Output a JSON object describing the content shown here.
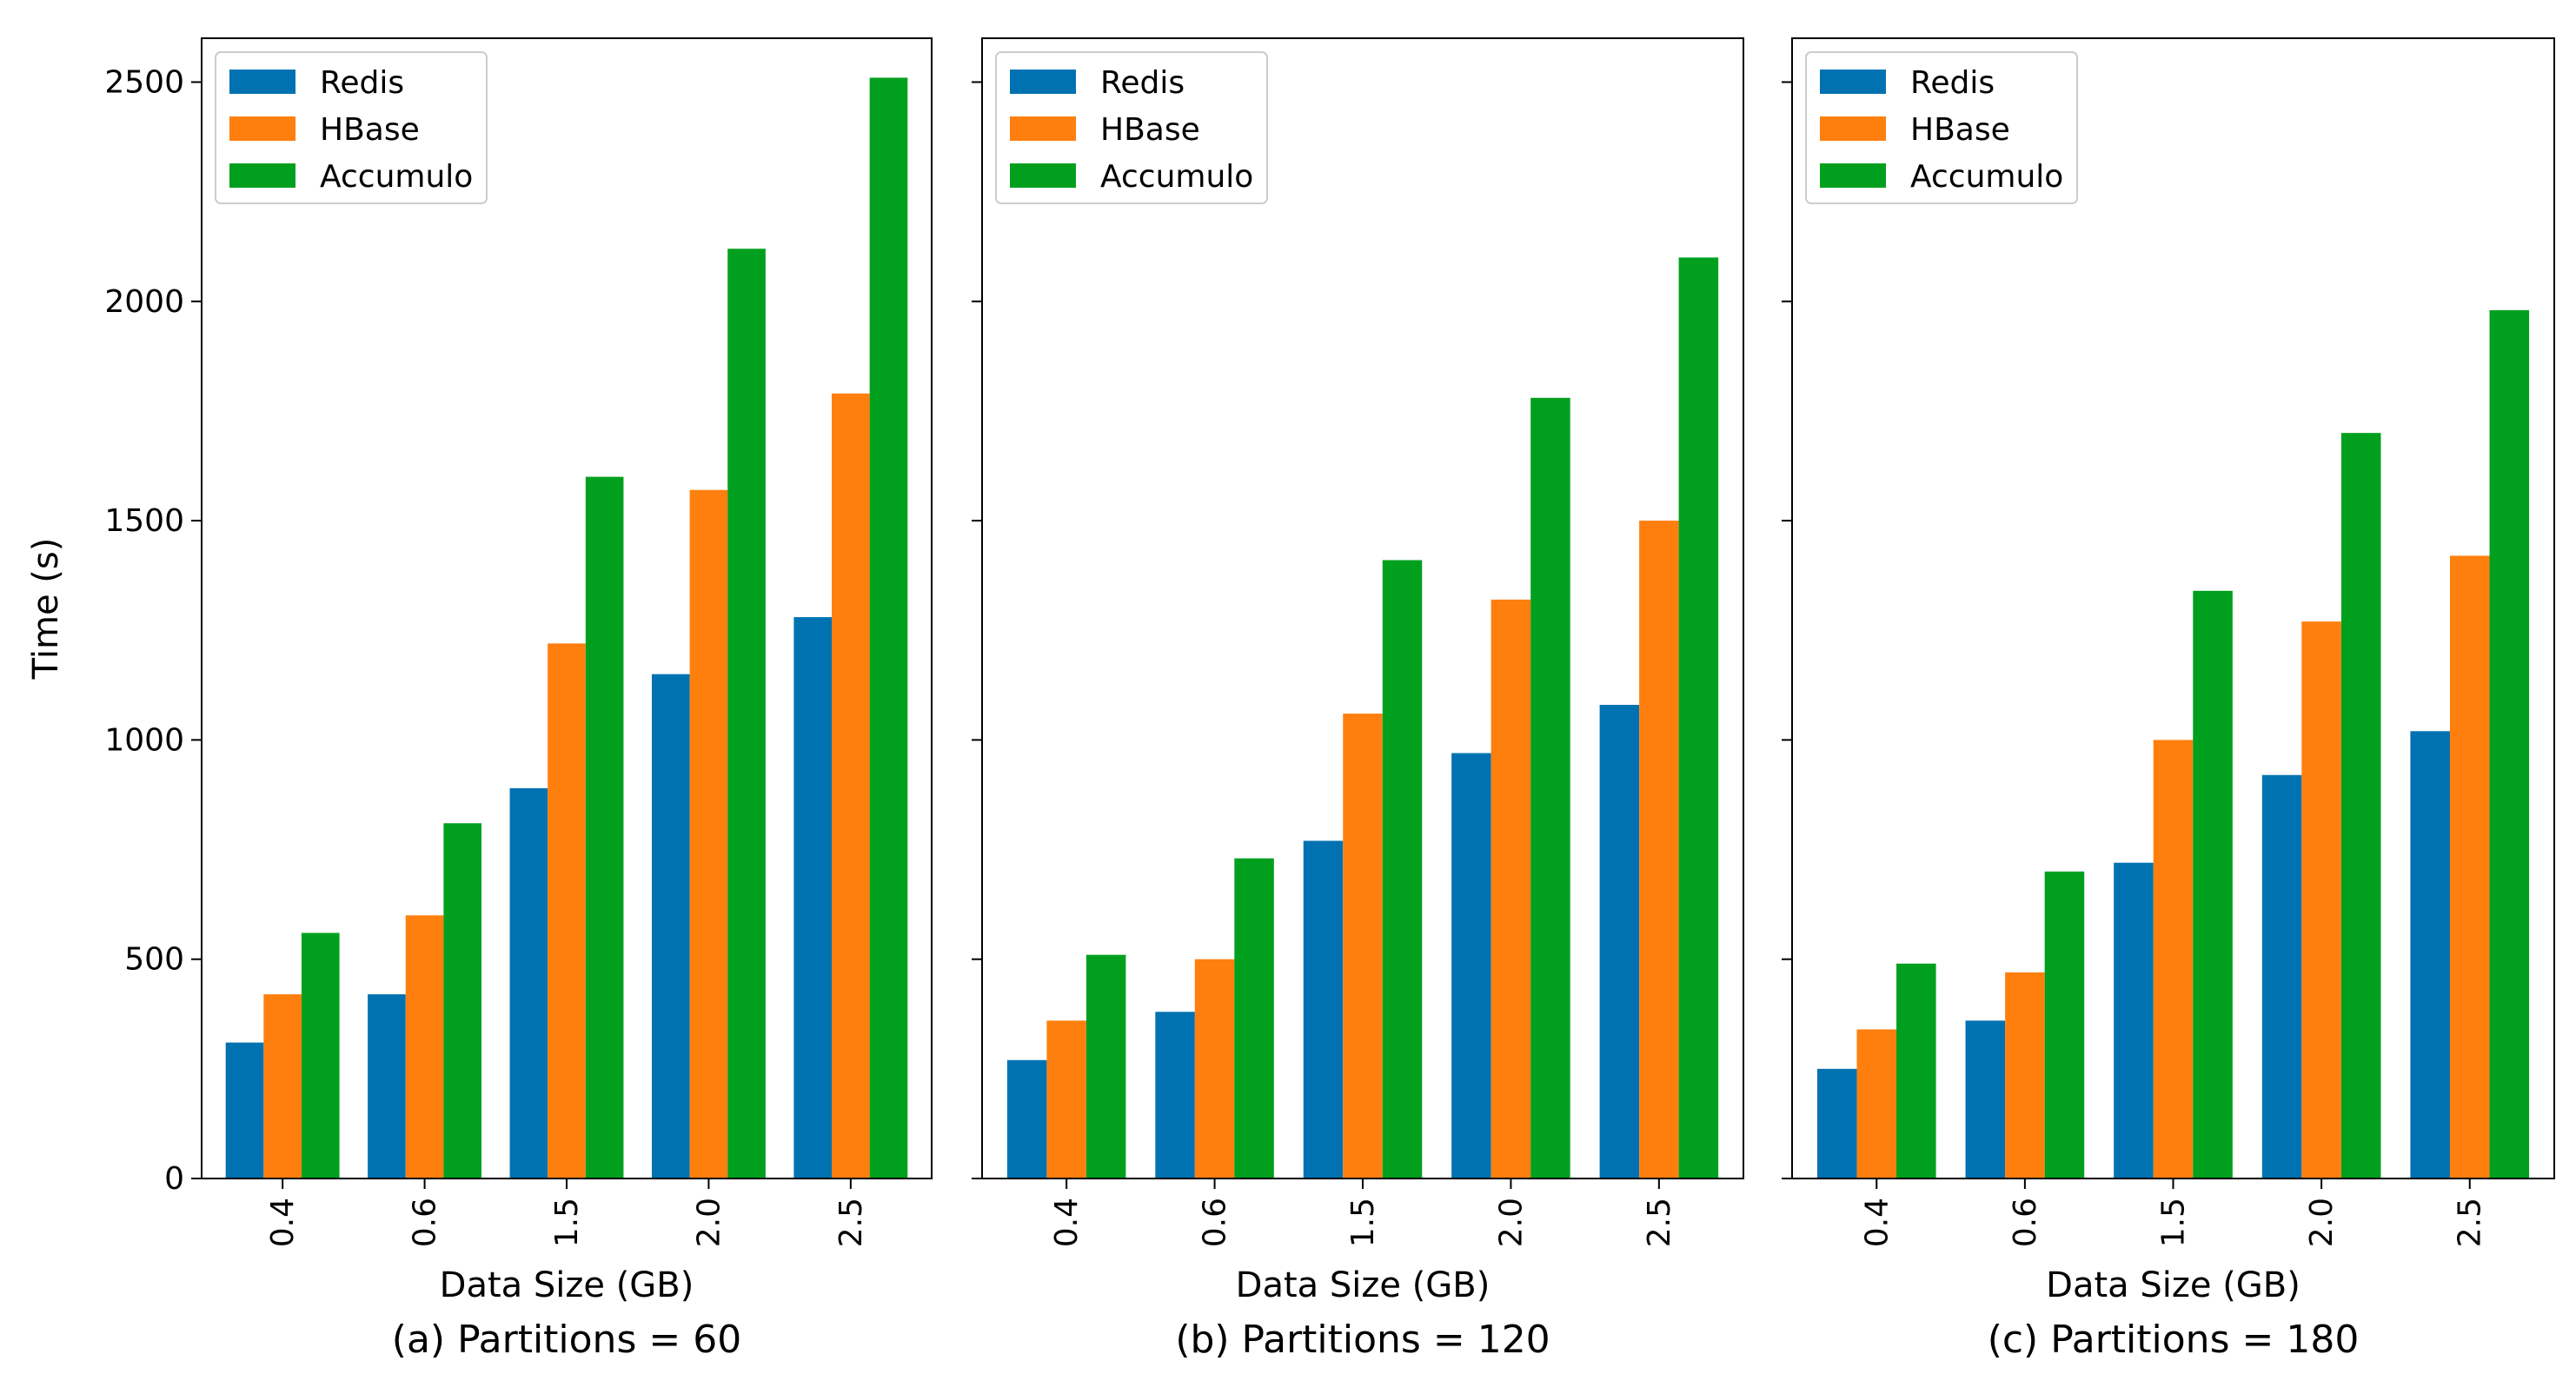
{
  "chart_data": [
    {
      "type": "bar",
      "title": "(a) Partitions = 60",
      "xlabel": "Data Size (GB)",
      "ylabel": "Time (s)",
      "ylim": [
        0,
        2600
      ],
      "yticks": [
        "0",
        "500",
        "1000",
        "1500",
        "2000",
        "2500"
      ],
      "categories": [
        "0.4",
        "0.6",
        "1.5",
        "2.0",
        "2.5"
      ],
      "legend_position": "top-left",
      "series": [
        {
          "name": "Redis",
          "color": "#0072B2",
          "values": [
            310,
            420,
            890,
            1150,
            1280
          ]
        },
        {
          "name": "HBase",
          "color": "#FF7F0E",
          "values": [
            420,
            600,
            1220,
            1570,
            1790
          ]
        },
        {
          "name": "Accumulo",
          "color": "#00A01E",
          "values": [
            560,
            810,
            1600,
            2120,
            2510
          ]
        }
      ]
    },
    {
      "type": "bar",
      "title": "(b) Partitions = 120",
      "xlabel": "Data Size (GB)",
      "ylabel": "",
      "ylim": [
        0,
        2600
      ],
      "categories": [
        "0.4",
        "0.6",
        "1.5",
        "2.0",
        "2.5"
      ],
      "legend_position": "top-left",
      "series": [
        {
          "name": "Redis",
          "color": "#0072B2",
          "values": [
            270,
            380,
            770,
            970,
            1080
          ]
        },
        {
          "name": "HBase",
          "color": "#FF7F0E",
          "values": [
            360,
            500,
            1060,
            1320,
            1500
          ]
        },
        {
          "name": "Accumulo",
          "color": "#00A01E",
          "values": [
            510,
            730,
            1410,
            1780,
            2100
          ]
        }
      ]
    },
    {
      "type": "bar",
      "title": "(c) Partitions = 180",
      "xlabel": "Data Size (GB)",
      "ylabel": "",
      "ylim": [
        0,
        2600
      ],
      "categories": [
        "0.4",
        "0.6",
        "1.5",
        "2.0",
        "2.5"
      ],
      "legend_position": "top-left",
      "series": [
        {
          "name": "Redis",
          "color": "#0072B2",
          "values": [
            250,
            360,
            720,
            920,
            1020
          ]
        },
        {
          "name": "HBase",
          "color": "#FF7F0E",
          "values": [
            340,
            470,
            1000,
            1270,
            1420
          ]
        },
        {
          "name": "Accumulo",
          "color": "#00A01E",
          "values": [
            490,
            700,
            1340,
            1700,
            1980
          ]
        }
      ]
    }
  ]
}
